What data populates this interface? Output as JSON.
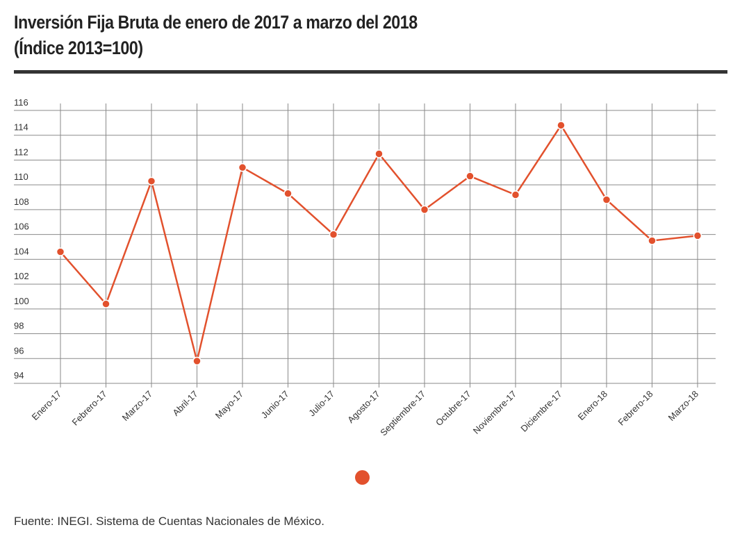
{
  "header": {
    "title_line1": "Inversión Fija Bruta de enero de 2017 a marzo del 2018",
    "title_line2": "(Índice 2013=100)"
  },
  "footer": {
    "source": "Fuente:  INEGI. Sistema de Cuentas Nacionales de México."
  },
  "colors": {
    "series": "#e2512d",
    "grid": "#8a8a8a",
    "rule": "#333333"
  },
  "chart_data": {
    "type": "line",
    "title": "Inversión Fija Bruta de enero de 2017 a marzo del 2018 (Índice 2013=100)",
    "xlabel": "",
    "ylabel": "",
    "categories": [
      "Enero-17",
      "Febrero-17",
      "Marzo-17",
      "Abril-17",
      "Mayo-17",
      "Junio-17",
      "Julio-17",
      "Agosto-17",
      "Septiembre-17",
      "Octubre-17",
      "Noviembre-17",
      "Diciembre-17",
      "Enero-18",
      "Febrero-18",
      "Marzo-18"
    ],
    "series": [
      {
        "values": [
          104.6,
          100.4,
          110.3,
          95.8,
          111.4,
          109.3,
          106.0,
          112.5,
          108.0,
          110.7,
          109.2,
          114.8,
          108.8,
          105.5,
          105.9
        ]
      }
    ],
    "ylim": [
      94,
      116
    ],
    "yticks": [
      94,
      96,
      98,
      100,
      102,
      104,
      106,
      108,
      110,
      112,
      114,
      116
    ],
    "grid": true,
    "legend": "bottom-center"
  }
}
